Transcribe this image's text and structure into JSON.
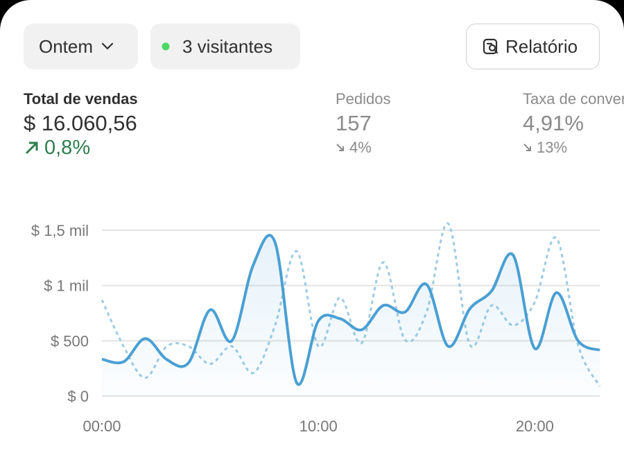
{
  "header": {
    "date_filter": "Ontem",
    "visitors": "3 visitantes",
    "report": "Relatório"
  },
  "metrics": [
    {
      "title": "Total de vendas",
      "value": "$ 16.060,56",
      "change": "0,8%"
    },
    {
      "title": "Pedidos",
      "value": "157",
      "change": "4%"
    },
    {
      "title": "Taxa de conversão",
      "value": "4,91%",
      "change": "13%"
    }
  ],
  "chart_data": {
    "type": "line",
    "x": [
      0,
      1,
      2,
      3,
      4,
      5,
      6,
      7,
      8,
      9,
      10,
      11,
      12,
      13,
      14,
      15,
      16,
      17,
      18,
      19,
      20,
      21,
      22,
      23
    ],
    "xlim": [
      0,
      23
    ],
    "xticks": [
      {
        "value": 0,
        "label": "00:00"
      },
      {
        "value": 10,
        "label": "10:00"
      },
      {
        "value": 20,
        "label": "20:00"
      }
    ],
    "ylim": [
      0,
      1600
    ],
    "yticks": [
      {
        "value": 0,
        "label": "$ 0"
      },
      {
        "value": 500,
        "label": "$ 500"
      },
      {
        "value": 1000,
        "label": "$ 1 mil"
      },
      {
        "value": 1500,
        "label": "$ 1,5 mil"
      }
    ],
    "grid": true,
    "series": [
      {
        "color": "#4a9fd4",
        "style": "solid",
        "area": true,
        "values": [
          333,
          310,
          520,
          330,
          300,
          780,
          500,
          1190,
          1390,
          120,
          680,
          700,
          600,
          820,
          760,
          1010,
          450,
          790,
          950,
          1275,
          430,
          935,
          500,
          415
        ]
      },
      {
        "color": "#9ccbe3",
        "style": "dashed",
        "values": [
          870,
          450,
          165,
          450,
          450,
          290,
          450,
          210,
          640,
          1310,
          450,
          890,
          480,
          1210,
          510,
          760,
          1560,
          465,
          820,
          640,
          850,
          1430,
          460,
          90
        ]
      }
    ]
  }
}
